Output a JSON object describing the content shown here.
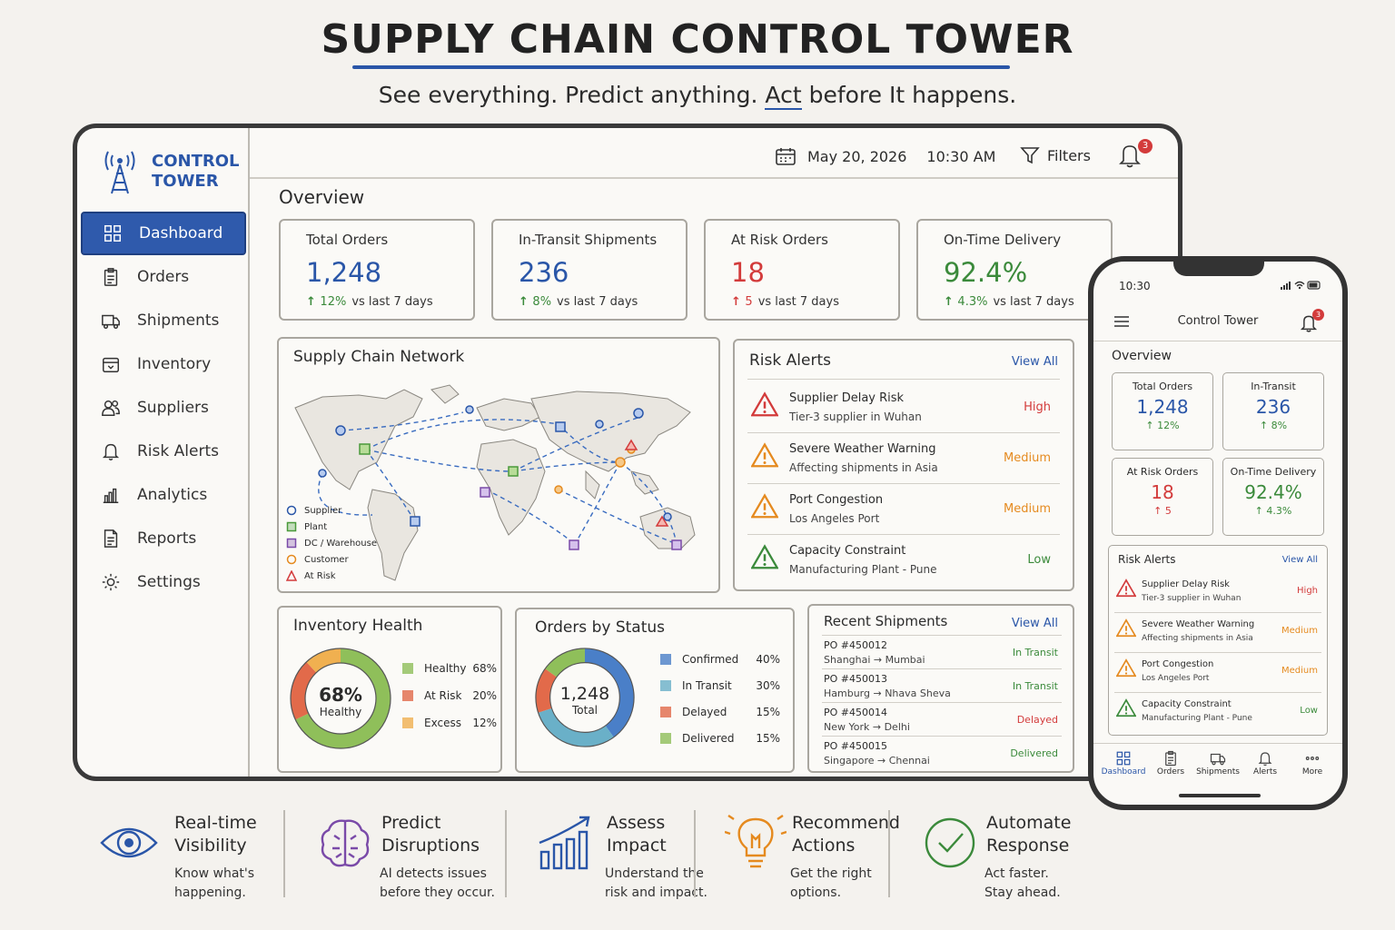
{
  "hero": {
    "title": "SUPPLY CHAIN CONTROL TOWER",
    "tagline_part1": "See everything. Predict anything.",
    "tagline_accent": "Act",
    "tagline_part2": "before It happens."
  },
  "app": {
    "logo_line1": "CONTROL",
    "logo_line2": "TOWER",
    "nav": [
      {
        "label": "Dashboard",
        "icon": "grid-icon"
      },
      {
        "label": "Orders",
        "icon": "clipboard-icon"
      },
      {
        "label": "Shipments",
        "icon": "truck-icon"
      },
      {
        "label": "Inventory",
        "icon": "box-icon"
      },
      {
        "label": "Suppliers",
        "icon": "users-icon"
      },
      {
        "label": "Risk Alerts",
        "icon": "bell-icon"
      },
      {
        "label": "Analytics",
        "icon": "bar-chart-icon"
      },
      {
        "label": "Reports",
        "icon": "document-icon"
      },
      {
        "label": "Settings",
        "icon": "gear-icon"
      }
    ],
    "topbar": {
      "date": "May 20, 2026",
      "time": "10:30 AM",
      "filters_label": "Filters",
      "notification_count": "3"
    },
    "overview_title": "Overview",
    "kpis": [
      {
        "label": "Total Orders",
        "value": "1,248",
        "delta": "12%",
        "delta_suffix": "vs last 7 days",
        "color": "#2a56a8",
        "delta_color": "#3b8a3b"
      },
      {
        "label": "In-Transit Shipments",
        "value": "236",
        "delta": "8%",
        "delta_suffix": "vs last 7 days",
        "color": "#2a56a8",
        "delta_color": "#3b8a3b"
      },
      {
        "label": "At Risk Orders",
        "value": "18",
        "delta": "5",
        "delta_suffix": "vs last 7 days",
        "color": "#d33b3b",
        "delta_color": "#d33b3b"
      },
      {
        "label": "On-Time Delivery",
        "value": "92.4%",
        "delta": "4.3%",
        "delta_suffix": "vs last 7 days",
        "color": "#3b8a3b",
        "delta_color": "#3b8a3b"
      }
    ],
    "network": {
      "title": "Supply Chain Network",
      "legend": [
        {
          "label": "Supplier",
          "color": "#2a56a8",
          "shape": "circle"
        },
        {
          "label": "Plant",
          "color": "#4a9a3a",
          "shape": "square"
        },
        {
          "label": "DC / Warehouse",
          "color": "#7a4aa8",
          "shape": "square"
        },
        {
          "label": "Customer",
          "color": "#e58a1f",
          "shape": "circle"
        },
        {
          "label": "At Risk",
          "color": "#d33b3b",
          "shape": "triangle"
        }
      ]
    },
    "risk_alerts": {
      "title": "Risk Alerts",
      "view_all": "View All",
      "items": [
        {
          "title": "Supplier Delay Risk",
          "subtitle": "Tier-3 supplier in Wuhan",
          "level": "High",
          "color": "#d33b3b"
        },
        {
          "title": "Severe Weather Warning",
          "subtitle": "Affecting shipments in Asia",
          "level": "Medium",
          "color": "#e58a1f"
        },
        {
          "title": "Port Congestion",
          "subtitle": "Los Angeles Port",
          "level": "Medium",
          "color": "#e58a1f"
        },
        {
          "title": "Capacity Constraint",
          "subtitle": "Manufacturing Plant - Pune",
          "level": "Low",
          "color": "#3b8a3b"
        }
      ]
    },
    "inventory": {
      "title": "Inventory Health",
      "center_value": "68%",
      "center_label": "Healthy",
      "segments": [
        {
          "label": "Healthy",
          "value": 68,
          "display": "68%",
          "color": "#8fbf5a"
        },
        {
          "label": "At Risk",
          "value": 20,
          "display": "20%",
          "color": "#e26a4a"
        },
        {
          "label": "Excess",
          "value": 12,
          "display": "12%",
          "color": "#f0b050"
        }
      ]
    },
    "orders_status": {
      "title": "Orders by Status",
      "center_value": "1,248",
      "center_label": "Total",
      "segments": [
        {
          "label": "Confirmed",
          "value": 40,
          "display": "40%",
          "color": "#4a7fc8"
        },
        {
          "label": "In Transit",
          "value": 30,
          "display": "30%",
          "color": "#6ab0c8"
        },
        {
          "label": "Delayed",
          "value": 15,
          "display": "15%",
          "color": "#e26a4a"
        },
        {
          "label": "Delivered",
          "value": 15,
          "display": "15%",
          "color": "#8fbf5a"
        }
      ]
    },
    "shipments": {
      "title": "Recent Shipments",
      "view_all": "View All",
      "rows": [
        {
          "po": "PO #450012",
          "route": "Shanghai → Mumbai",
          "status": "In Transit",
          "color": "#3b8a3b"
        },
        {
          "po": "PO #450013",
          "route": "Hamburg → Nhava Sheva",
          "status": "In Transit",
          "color": "#3b8a3b"
        },
        {
          "po": "PO #450014",
          "route": "New York → Delhi",
          "status": "Delayed",
          "color": "#d33b3b"
        },
        {
          "po": "PO #450015",
          "route": "Singapore → Chennai",
          "status": "Delivered",
          "color": "#3b8a3b"
        }
      ]
    }
  },
  "phone": {
    "time": "10:30",
    "title": "Control Tower",
    "notification_count": "3",
    "overview": "Overview",
    "kpis": [
      {
        "label": "Total Orders",
        "value": "1,248",
        "delta": "↑ 12%",
        "color": "#2a56a8",
        "delta_color": "#3b8a3b"
      },
      {
        "label": "In-Transit",
        "value": "236",
        "delta": "↑ 8%",
        "color": "#2a56a8",
        "delta_color": "#3b8a3b"
      },
      {
        "label": "At Risk Orders",
        "value": "18",
        "delta": "↑ 5",
        "color": "#d33b3b",
        "delta_color": "#d33b3b"
      },
      {
        "label": "On-Time Delivery",
        "value": "92.4%",
        "delta": "↑ 4.3%",
        "color": "#3b8a3b",
        "delta_color": "#3b8a3b"
      }
    ],
    "alerts_title": "Risk Alerts",
    "alerts_view_all": "View All",
    "tabs": [
      {
        "label": "Dashboard",
        "icon": "grid-icon"
      },
      {
        "label": "Orders",
        "icon": "clipboard-icon"
      },
      {
        "label": "Shipments",
        "icon": "truck-icon"
      },
      {
        "label": "Alerts",
        "icon": "bell-icon"
      },
      {
        "label": "More",
        "icon": "more-icon"
      }
    ]
  },
  "features": [
    {
      "title1": "Real-time",
      "title2": "Visibility",
      "desc1": "Know what's",
      "desc2": "happening.",
      "icon": "eye-icon",
      "color": "#2a56a8"
    },
    {
      "title1": "Predict",
      "title2": "Disruptions",
      "desc1": "AI detects issues",
      "desc2": "before they occur.",
      "icon": "brain-icon",
      "color": "#7a4aa8"
    },
    {
      "title1": "Assess",
      "title2": "Impact",
      "desc1": "Understand the",
      "desc2": "risk and impact.",
      "icon": "rising-chart-icon",
      "color": "#2a56a8"
    },
    {
      "title1": "Recommend",
      "title2": "Actions",
      "desc1": "Get the right",
      "desc2": "options.",
      "icon": "lightbulb-icon",
      "color": "#e58a1f"
    },
    {
      "title1": "Automate",
      "title2": "Response",
      "desc1": "Act faster.",
      "desc2": "Stay ahead.",
      "icon": "check-circle-icon",
      "color": "#3b8a3b"
    }
  ]
}
